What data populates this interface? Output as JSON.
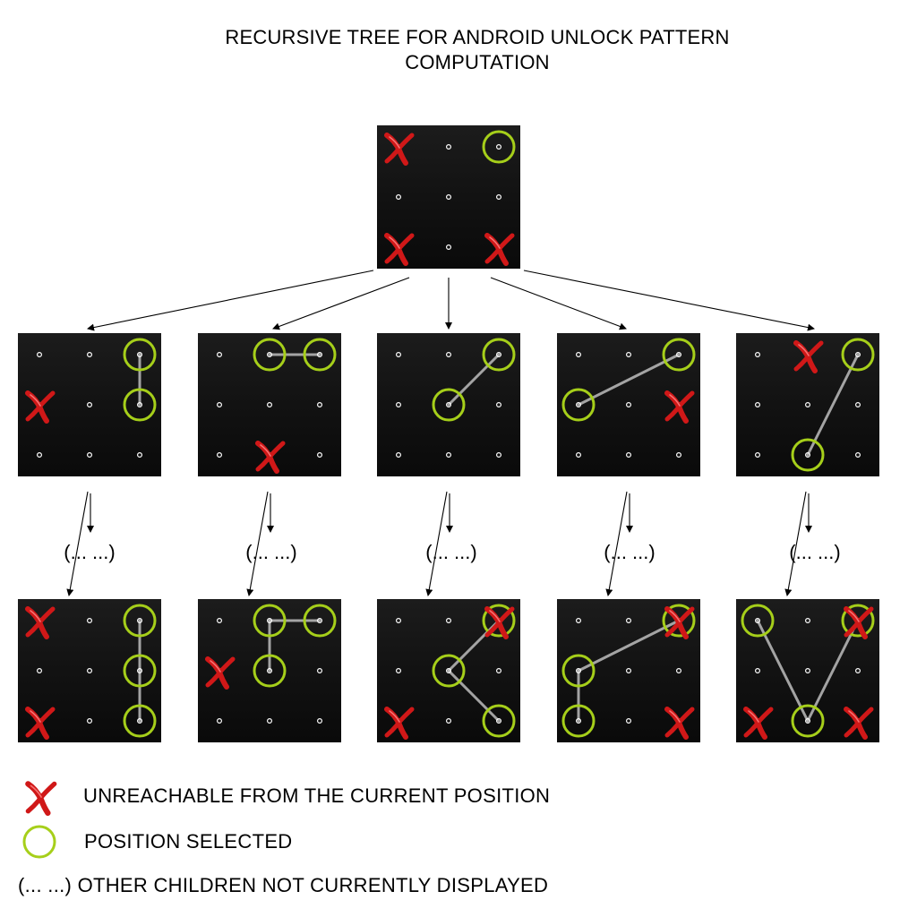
{
  "title": {
    "line1": "RECURSIVE TREE FOR ANDROID UNLOCK PATTERN",
    "line2": "COMPUTATION"
  },
  "ellipsis_label": "(... ...)",
  "legend": {
    "unreachable_label": "UNREACHABLE FROM THE CURRENT POSITION",
    "selected_label": "POSITION SELECTED",
    "ellipsis_label": "(... ...)",
    "other_children_label": "OTHER CHILDREN NOT CURRENTLY DISPLAYED"
  },
  "colors": {
    "board_bg": "#141414",
    "selected_ring": "#a6cf1a",
    "unreachable_x": "#d01818",
    "path_line": "#bdbdbd",
    "dot": "#ffffff",
    "arrow": "#000000"
  },
  "icons": {
    "unreachable": "red-x-icon",
    "selected": "green-ring-icon"
  },
  "boards": {
    "root": {
      "path": [
        2
      ],
      "unreachable": [
        0,
        6,
        8
      ]
    },
    "level1": [
      {
        "path": [
          2,
          5
        ],
        "unreachable": [
          3
        ]
      },
      {
        "path": [
          2,
          1
        ],
        "unreachable": [
          7
        ]
      },
      {
        "path": [
          2,
          4
        ],
        "unreachable": []
      },
      {
        "path": [
          2,
          3
        ],
        "unreachable": [
          5
        ]
      },
      {
        "path": [
          2,
          7
        ],
        "unreachable": [
          1
        ]
      }
    ],
    "level2": [
      {
        "path": [
          2,
          5,
          8
        ],
        "unreachable": [
          0,
          6
        ]
      },
      {
        "path": [
          2,
          1,
          4
        ],
        "unreachable": [
          3
        ]
      },
      {
        "path": [
          8,
          4,
          2
        ],
        "unreachable": [
          2,
          6
        ]
      },
      {
        "path": [
          2,
          3,
          6
        ],
        "unreachable": [
          2,
          8
        ]
      },
      {
        "path": [
          0,
          7,
          2
        ],
        "unreachable": [
          2,
          6,
          8
        ]
      }
    ]
  }
}
